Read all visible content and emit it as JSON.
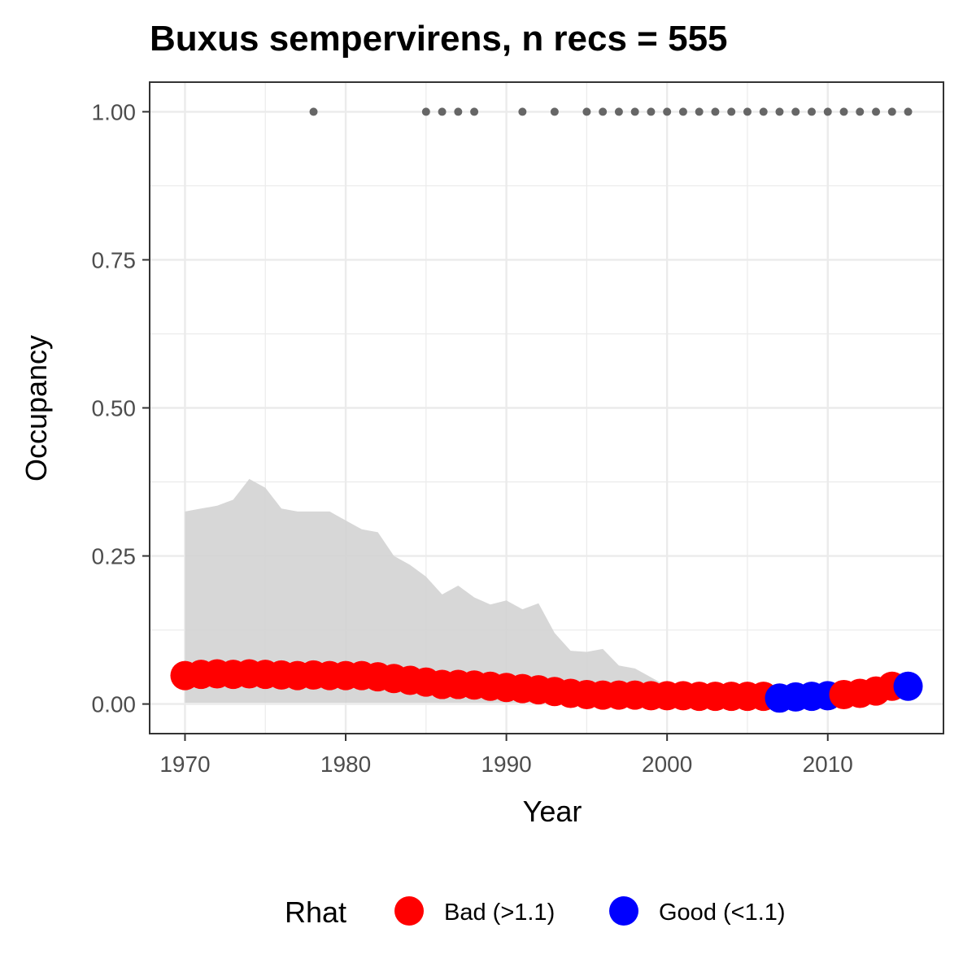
{
  "chart_data": {
    "type": "scatter",
    "title": "Buxus sempervirens, n recs = 555",
    "xlabel": "Year",
    "ylabel": "Occupancy",
    "xlim": [
      1967.8,
      2017.2
    ],
    "ylim": [
      -0.05,
      1.05
    ],
    "x_ticks": [
      1970,
      1980,
      1990,
      2000,
      2010
    ],
    "x_tick_labels": [
      "1970",
      "1980",
      "1990",
      "2000",
      "2010"
    ],
    "y_ticks": [
      0,
      0.25,
      0.5,
      0.75,
      1.0
    ],
    "y_tick_labels": [
      "0.00",
      "0.25",
      "0.50",
      "0.75",
      "1.00"
    ],
    "grid": true,
    "legend": {
      "title": "Rhat",
      "position": "bottom",
      "entries": [
        {
          "label": "Bad (>1.1)",
          "color": "#ff0000"
        },
        {
          "label": "Good (<1.1)",
          "color": "#0000ff"
        }
      ]
    },
    "colors": {
      "bad": "#ff0000",
      "good": "#0000ff",
      "ribbon": "#d3d3d3",
      "records": "#666666",
      "panel_border": "#333333",
      "grid": "#ebebeb"
    },
    "occupancy_series": {
      "x": [
        1970,
        1971,
        1972,
        1973,
        1974,
        1975,
        1976,
        1977,
        1978,
        1979,
        1980,
        1981,
        1982,
        1983,
        1984,
        1985,
        1986,
        1987,
        1988,
        1989,
        1990,
        1991,
        1992,
        1993,
        1994,
        1995,
        1996,
        1997,
        1998,
        1999,
        2000,
        2001,
        2002,
        2003,
        2004,
        2005,
        2006,
        2007,
        2008,
        2009,
        2010,
        2011,
        2012,
        2013,
        2014,
        2015
      ],
      "y": [
        0.048,
        0.05,
        0.051,
        0.05,
        0.051,
        0.05,
        0.049,
        0.048,
        0.049,
        0.048,
        0.048,
        0.048,
        0.046,
        0.043,
        0.04,
        0.037,
        0.033,
        0.033,
        0.032,
        0.03,
        0.028,
        0.026,
        0.024,
        0.021,
        0.018,
        0.016,
        0.015,
        0.015,
        0.015,
        0.014,
        0.014,
        0.014,
        0.013,
        0.013,
        0.013,
        0.013,
        0.013,
        0.01,
        0.012,
        0.013,
        0.014,
        0.016,
        0.018,
        0.022,
        0.03,
        0.03
      ],
      "rhat": [
        "Bad",
        "Bad",
        "Bad",
        "Bad",
        "Bad",
        "Bad",
        "Bad",
        "Bad",
        "Bad",
        "Bad",
        "Bad",
        "Bad",
        "Bad",
        "Bad",
        "Bad",
        "Bad",
        "Bad",
        "Bad",
        "Bad",
        "Bad",
        "Bad",
        "Bad",
        "Bad",
        "Bad",
        "Bad",
        "Bad",
        "Bad",
        "Bad",
        "Bad",
        "Bad",
        "Bad",
        "Bad",
        "Bad",
        "Bad",
        "Bad",
        "Bad",
        "Bad",
        "Good",
        "Good",
        "Good",
        "Good",
        "Bad",
        "Bad",
        "Bad",
        "Bad",
        "Good"
      ]
    },
    "ribbon": {
      "x": [
        1970,
        1971,
        1972,
        1973,
        1974,
        1975,
        1976,
        1977,
        1978,
        1979,
        1980,
        1981,
        1982,
        1983,
        1984,
        1985,
        1986,
        1987,
        1988,
        1989,
        1990,
        1991,
        1992,
        1993,
        1994,
        1995,
        1996,
        1997,
        1998,
        1999,
        2000
      ],
      "upper": [
        0.325,
        0.33,
        0.335,
        0.345,
        0.38,
        0.365,
        0.33,
        0.325,
        0.325,
        0.325,
        0.31,
        0.295,
        0.29,
        0.25,
        0.235,
        0.215,
        0.185,
        0.2,
        0.18,
        0.168,
        0.175,
        0.16,
        0.17,
        0.12,
        0.09,
        0.088,
        0.093,
        0.065,
        0.06,
        0.045,
        0.03
      ],
      "lower": [
        0.002,
        0.002,
        0.002,
        0.002,
        0.002,
        0.002,
        0.002,
        0.002,
        0.002,
        0.002,
        0.002,
        0.002,
        0.002,
        0.002,
        0.002,
        0.002,
        0.002,
        0.002,
        0.002,
        0.002,
        0.002,
        0.002,
        0.002,
        0.002,
        0.002,
        0.002,
        0.002,
        0.002,
        0.002,
        0.002,
        0.002
      ]
    },
    "record_years": {
      "x": [
        1978,
        1985,
        1986,
        1987,
        1988,
        1991,
        1993,
        1995,
        1996,
        1997,
        1998,
        1999,
        2000,
        2001,
        2002,
        2003,
        2004,
        2005,
        2006,
        2007,
        2008,
        2009,
        2010,
        2011,
        2012,
        2013,
        2014,
        2015
      ],
      "y": 1.0
    }
  }
}
